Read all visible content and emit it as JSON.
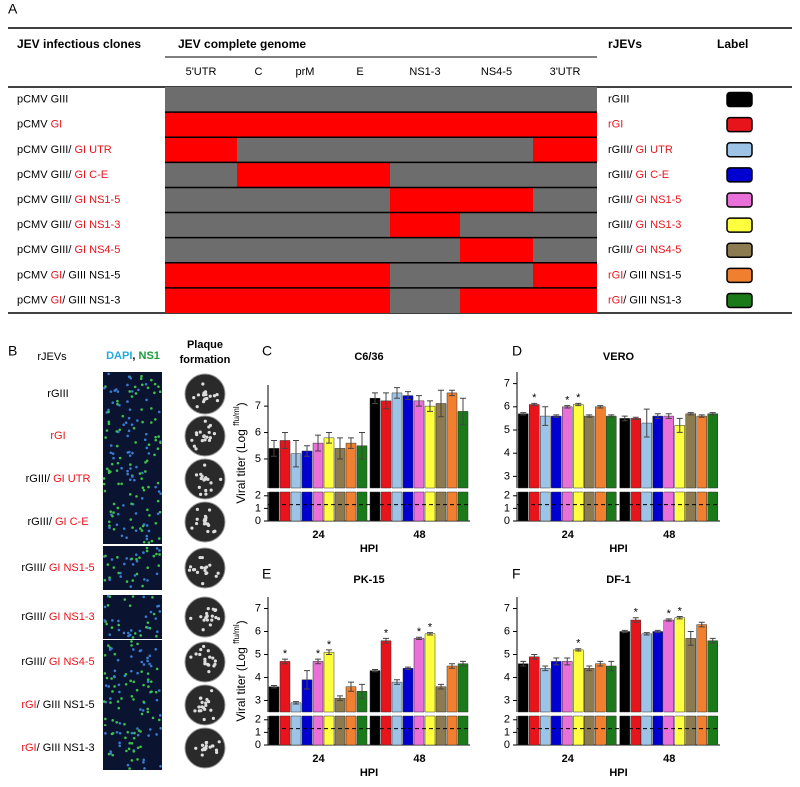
{
  "panel_labels": [
    "A",
    "B",
    "C",
    "D",
    "E",
    "F"
  ],
  "table": {
    "headers": {
      "clones": "JEV infectious clones",
      "genome": "JEV complete genome",
      "rjevs": "rJEVs",
      "label": "Label"
    },
    "segments": [
      "5'UTR",
      "C",
      "prM",
      "E",
      "NS1-3",
      "NS4-5",
      "3'UTR"
    ],
    "rows": [
      {
        "clone": [
          {
            "text": "pCMV GIII",
            "color": "#000000"
          }
        ],
        "genome": [
          "#6d6d6d",
          "#6d6d6d",
          "#6d6d6d",
          "#6d6d6d",
          "#6d6d6d",
          "#6d6d6d",
          "#6d6d6d"
        ],
        "rjev": [
          {
            "text": "rGIII",
            "color": "#000000"
          }
        ],
        "label_color": "#000000"
      },
      {
        "clone": [
          {
            "text": "pCMV ",
            "color": "#000000"
          },
          {
            "text": "GI",
            "color": "#e8141c"
          }
        ],
        "genome": [
          "#ff0000",
          "#ff0000",
          "#ff0000",
          "#ff0000",
          "#ff0000",
          "#ff0000",
          "#ff0000"
        ],
        "rjev": [
          {
            "text": "rGI",
            "color": "#e8141c"
          }
        ],
        "label_color": "#e8141c"
      },
      {
        "clone": [
          {
            "text": "pCMV GIII/ ",
            "color": "#000000"
          },
          {
            "text": "GI UTR",
            "color": "#e8141c"
          }
        ],
        "genome": [
          "#ff0000",
          "#6d6d6d",
          "#6d6d6d",
          "#6d6d6d",
          "#6d6d6d",
          "#6d6d6d",
          "#ff0000"
        ],
        "rjev": [
          {
            "text": "rGIII/ ",
            "color": "#000000"
          },
          {
            "text": "GI UTR",
            "color": "#e8141c"
          }
        ],
        "label_color": "#9dc3e6"
      },
      {
        "clone": [
          {
            "text": "pCMV GIII/ ",
            "color": "#000000"
          },
          {
            "text": "GI C-E",
            "color": "#e8141c"
          }
        ],
        "genome": [
          "#6d6d6d",
          "#ff0000",
          "#ff0000",
          "#ff0000",
          "#6d6d6d",
          "#6d6d6d",
          "#6d6d6d"
        ],
        "rjev": [
          {
            "text": "rGIII/ ",
            "color": "#000000"
          },
          {
            "text": "GI C-E",
            "color": "#e8141c"
          }
        ],
        "label_color": "#0000d0"
      },
      {
        "clone": [
          {
            "text": "pCMV GIII/ ",
            "color": "#000000"
          },
          {
            "text": "GI NS1-5",
            "color": "#e8141c"
          }
        ],
        "genome": [
          "#6d6d6d",
          "#6d6d6d",
          "#6d6d6d",
          "#6d6d6d",
          "#ff0000",
          "#ff0000",
          "#6d6d6d"
        ],
        "rjev": [
          {
            "text": "rGIII/ ",
            "color": "#000000"
          },
          {
            "text": "GI NS1-5",
            "color": "#e8141c"
          }
        ],
        "label_color": "#e870d8"
      },
      {
        "clone": [
          {
            "text": "pCMV GIII/ ",
            "color": "#000000"
          },
          {
            "text": "GI NS1-3",
            "color": "#e8141c"
          }
        ],
        "genome": [
          "#6d6d6d",
          "#6d6d6d",
          "#6d6d6d",
          "#6d6d6d",
          "#ff0000",
          "#6d6d6d",
          "#6d6d6d"
        ],
        "rjev": [
          {
            "text": "rGIII/ ",
            "color": "#000000"
          },
          {
            "text": "GI NS1-3",
            "color": "#e8141c"
          }
        ],
        "label_color": "#ffff40"
      },
      {
        "clone": [
          {
            "text": "pCMV GIII/ ",
            "color": "#000000"
          },
          {
            "text": "GI NS4-5",
            "color": "#e8141c"
          }
        ],
        "genome": [
          "#6d6d6d",
          "#6d6d6d",
          "#6d6d6d",
          "#6d6d6d",
          "#6d6d6d",
          "#ff0000",
          "#6d6d6d"
        ],
        "rjev": [
          {
            "text": "rGIII/ ",
            "color": "#000000"
          },
          {
            "text": "GI NS4-5",
            "color": "#e8141c"
          }
        ],
        "label_color": "#8c7a50"
      },
      {
        "clone": [
          {
            "text": "pCMV ",
            "color": "#000000"
          },
          {
            "text": "GI",
            "color": "#e8141c"
          },
          {
            "text": "/ GIII NS1-5",
            "color": "#000000"
          }
        ],
        "genome": [
          "#ff0000",
          "#ff0000",
          "#ff0000",
          "#ff0000",
          "#6d6d6d",
          "#6d6d6d",
          "#ff0000"
        ],
        "rjev": [
          {
            "text": "rGI",
            "color": "#e8141c"
          },
          {
            "text": "/ GIII NS1-5",
            "color": "#000000"
          }
        ],
        "label_color": "#f08030"
      },
      {
        "clone": [
          {
            "text": "pCMV ",
            "color": "#000000"
          },
          {
            "text": "GI",
            "color": "#e8141c"
          },
          {
            "text": "/ GIII NS1-3",
            "color": "#000000"
          }
        ],
        "genome": [
          "#ff0000",
          "#ff0000",
          "#ff0000",
          "#ff0000",
          "#6d6d6d",
          "#ff0000",
          "#ff0000"
        ],
        "rjev": [
          {
            "text": "rGI",
            "color": "#e8141c"
          },
          {
            "text": "/ GIII NS1-3",
            "color": "#000000"
          }
        ],
        "label_color": "#1a7a1a"
      }
    ]
  },
  "panel_b": {
    "rjevs_label": "rJEVs",
    "stain": [
      {
        "text": "DAPI",
        "color": "#22aadd"
      },
      {
        "text": ", ",
        "color": "#000000"
      },
      {
        "text": "NS1",
        "color": "#1a9a3a"
      }
    ],
    "plaque": [
      "Plaque",
      "formation"
    ]
  },
  "chart_data": [
    {
      "type": "bar",
      "title": "C6/36",
      "ylabel": "Viral titer (Log ",
      "ylabel_sup": "ffu/ml",
      "ylabel_end": ")",
      "xlabel": "HPI",
      "categories": [
        "24",
        "48"
      ],
      "ylim": [
        3.9,
        7.8
      ],
      "yticks": [
        5,
        6,
        7
      ],
      "ylim_low": [
        0,
        2.3
      ],
      "yticks_low": [
        0,
        1,
        2
      ],
      "detection_limit": 1.3,
      "series": [
        {
          "color": "#000000",
          "values": [
            5.4,
            7.3
          ],
          "errors": [
            0.3,
            0.2
          ]
        },
        {
          "color": "#e8141c",
          "values": [
            5.7,
            7.2
          ],
          "errors": [
            0.3,
            0.3
          ]
        },
        {
          "color": "#9dc3e6",
          "values": [
            5.2,
            7.5
          ],
          "errors": [
            0.5,
            0.2
          ]
        },
        {
          "color": "#0000d0",
          "values": [
            5.3,
            7.4
          ],
          "errors": [
            0.2,
            0.15
          ]
        },
        {
          "color": "#e870d8",
          "values": [
            5.6,
            7.2
          ],
          "errors": [
            0.3,
            0.2
          ]
        },
        {
          "color": "#ffff40",
          "values": [
            5.8,
            7.0
          ],
          "errors": [
            0.2,
            0.2
          ]
        },
        {
          "color": "#8c7a50",
          "values": [
            5.4,
            7.1
          ],
          "errors": [
            0.4,
            0.5
          ]
        },
        {
          "color": "#f08030",
          "values": [
            5.6,
            7.5
          ],
          "errors": [
            0.2,
            0.1
          ]
        },
        {
          "color": "#1a7a1a",
          "values": [
            5.5,
            6.8
          ],
          "errors": [
            0.5,
            0.5
          ]
        }
      ]
    },
    {
      "type": "bar",
      "title": "VERO",
      "xlabel": "HPI",
      "categories": [
        "24",
        "48"
      ],
      "ylim": [
        2.5,
        7.5
      ],
      "yticks": [
        3,
        4,
        5,
        6,
        7
      ],
      "ylim_low": [
        0,
        2.3
      ],
      "yticks_low": [
        0,
        1,
        2
      ],
      "detection_limit": 1.3,
      "series": [
        {
          "color": "#000000",
          "values": [
            5.7,
            5.5
          ],
          "errors": [
            0.05,
            0.1
          ]
        },
        {
          "color": "#e8141c",
          "values": [
            6.1,
            5.5
          ],
          "errors": [
            0.05,
            0.05
          ],
          "stars": [
            "*",
            null
          ]
        },
        {
          "color": "#9dc3e6",
          "values": [
            5.6,
            5.3
          ],
          "errors": [
            0.4,
            0.6
          ]
        },
        {
          "color": "#0000d0",
          "values": [
            5.6,
            5.6
          ],
          "errors": [
            0.05,
            0.1
          ]
        },
        {
          "color": "#e870d8",
          "values": [
            6.0,
            5.6
          ],
          "errors": [
            0.05,
            0.1
          ],
          "stars": [
            "*",
            null
          ]
        },
        {
          "color": "#ffff40",
          "values": [
            6.1,
            5.2
          ],
          "errors": [
            0.05,
            0.3
          ],
          "stars": [
            "*",
            null
          ]
        },
        {
          "color": "#8c7a50",
          "values": [
            5.6,
            5.7
          ],
          "errors": [
            0.05,
            0.05
          ]
        },
        {
          "color": "#f08030",
          "values": [
            6.0,
            5.6
          ],
          "errors": [
            0.05,
            0.05
          ]
        },
        {
          "color": "#1a7a1a",
          "values": [
            5.6,
            5.7
          ],
          "errors": [
            0.05,
            0.05
          ]
        }
      ]
    },
    {
      "type": "bar",
      "title": "PK-15",
      "ylabel": "Viral titer (Log ",
      "ylabel_sup": "ffu/ml",
      "ylabel_end": ")",
      "xlabel": "HPI",
      "categories": [
        "24",
        "48"
      ],
      "ylim": [
        2.5,
        7.5
      ],
      "yticks": [
        3,
        4,
        5,
        6,
        7
      ],
      "ylim_low": [
        0,
        2.3
      ],
      "yticks_low": [
        0,
        1,
        2
      ],
      "detection_limit": 1.3,
      "series": [
        {
          "color": "#000000",
          "values": [
            3.6,
            4.3
          ],
          "errors": [
            0.05,
            0.05
          ]
        },
        {
          "color": "#e8141c",
          "values": [
            4.7,
            5.6
          ],
          "errors": [
            0.1,
            0.1
          ],
          "stars": [
            "*",
            "*"
          ]
        },
        {
          "color": "#9dc3e6",
          "values": [
            2.9,
            3.8
          ],
          "errors": [
            0.05,
            0.1
          ]
        },
        {
          "color": "#0000d0",
          "values": [
            3.9,
            4.4
          ],
          "errors": [
            0.4,
            0.05
          ]
        },
        {
          "color": "#e870d8",
          "values": [
            4.7,
            5.7
          ],
          "errors": [
            0.1,
            0.05
          ],
          "stars": [
            "*",
            "*"
          ]
        },
        {
          "color": "#ffff40",
          "values": [
            5.1,
            5.9
          ],
          "errors": [
            0.1,
            0.05
          ],
          "stars": [
            "*",
            "*"
          ]
        },
        {
          "color": "#8c7a50",
          "values": [
            3.1,
            3.6
          ],
          "errors": [
            0.1,
            0.1
          ]
        },
        {
          "color": "#f08030",
          "values": [
            3.6,
            4.5
          ],
          "errors": [
            0.2,
            0.1
          ]
        },
        {
          "color": "#1a7a1a",
          "values": [
            3.4,
            4.6
          ],
          "errors": [
            0.3,
            0.1
          ]
        }
      ]
    },
    {
      "type": "bar",
      "title": "DF-1",
      "xlabel": "HPI",
      "categories": [
        "24",
        "48"
      ],
      "ylim": [
        2.5,
        7.5
      ],
      "yticks": [
        3,
        4,
        5,
        6,
        7
      ],
      "ylim_low": [
        0,
        2.3
      ],
      "yticks_low": [
        0,
        1,
        2
      ],
      "detection_limit": 1.3,
      "series": [
        {
          "color": "#000000",
          "values": [
            4.6,
            6.0
          ],
          "errors": [
            0.1,
            0.05
          ]
        },
        {
          "color": "#e8141c",
          "values": [
            4.9,
            6.5
          ],
          "errors": [
            0.1,
            0.1
          ],
          "stars": [
            null,
            "*"
          ]
        },
        {
          "color": "#9dc3e6",
          "values": [
            4.4,
            5.9
          ],
          "errors": [
            0.1,
            0.05
          ]
        },
        {
          "color": "#0000d0",
          "values": [
            4.7,
            6.0
          ],
          "errors": [
            0.15,
            0.05
          ]
        },
        {
          "color": "#e870d8",
          "values": [
            4.7,
            6.5
          ],
          "errors": [
            0.15,
            0.05
          ],
          "stars": [
            null,
            "*"
          ]
        },
        {
          "color": "#ffff40",
          "values": [
            5.2,
            6.6
          ],
          "errors": [
            0.05,
            0.05
          ],
          "stars": [
            "*",
            "*"
          ]
        },
        {
          "color": "#8c7a50",
          "values": [
            4.4,
            5.7
          ],
          "errors": [
            0.1,
            0.3
          ]
        },
        {
          "color": "#f08030",
          "values": [
            4.6,
            6.3
          ],
          "errors": [
            0.1,
            0.1
          ]
        },
        {
          "color": "#1a7a1a",
          "values": [
            4.5,
            5.6
          ],
          "errors": [
            0.2,
            0.1
          ]
        }
      ]
    }
  ]
}
